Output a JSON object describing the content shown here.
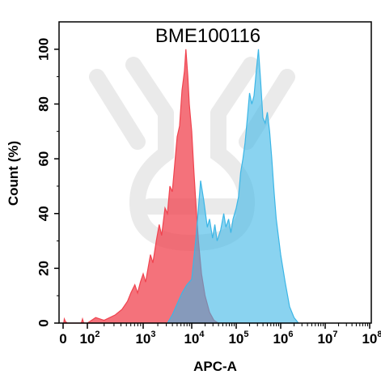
{
  "chart_data": {
    "type": "area",
    "title": "BME100116",
    "xlabel": "APC-A",
    "ylabel": "Count  (%)",
    "x_scale": "biexponential",
    "ylim": [
      0,
      110
    ],
    "xlim": [
      -0.2,
      8
    ],
    "y_ticks": [
      "0",
      "20",
      "40",
      "60",
      "80",
      "100"
    ],
    "x_ticks": [
      {
        "base": "0",
        "exp": ""
      },
      {
        "base": "10",
        "exp": "2"
      },
      {
        "base": "10",
        "exp": "3"
      },
      {
        "base": "10",
        "exp": "4"
      },
      {
        "base": "10",
        "exp": "5"
      },
      {
        "base": "10",
        "exp": "6"
      },
      {
        "base": "10",
        "exp": "7"
      },
      {
        "base": "10",
        "exp": "8"
      }
    ],
    "grid": false,
    "series": [
      {
        "color": "#f0434f",
        "fill_opacity": 0.75,
        "points": [
          [
            0.05,
            0
          ],
          [
            0.1,
            1.5
          ],
          [
            0.2,
            0.5
          ],
          [
            0.35,
            0
          ],
          [
            1.5,
            0
          ],
          [
            1.6,
            1.5
          ],
          [
            1.7,
            0
          ],
          [
            2.0,
            0
          ],
          [
            2.15,
            2
          ],
          [
            2.3,
            1
          ],
          [
            2.5,
            3
          ],
          [
            2.62,
            5
          ],
          [
            2.72,
            8
          ],
          [
            2.78,
            11
          ],
          [
            2.85,
            14
          ],
          [
            2.9,
            11
          ],
          [
            2.95,
            15
          ],
          [
            3.0,
            18
          ],
          [
            3.05,
            15
          ],
          [
            3.1,
            20
          ],
          [
            3.15,
            25
          ],
          [
            3.2,
            22
          ],
          [
            3.27,
            30
          ],
          [
            3.33,
            36
          ],
          [
            3.38,
            32
          ],
          [
            3.45,
            42
          ],
          [
            3.5,
            40
          ],
          [
            3.55,
            50
          ],
          [
            3.6,
            48
          ],
          [
            3.65,
            58
          ],
          [
            3.7,
            68
          ],
          [
            3.75,
            72
          ],
          [
            3.8,
            85
          ],
          [
            3.85,
            92
          ],
          [
            3.88,
            100
          ],
          [
            3.92,
            90
          ],
          [
            3.95,
            80
          ],
          [
            4.0,
            70
          ],
          [
            4.05,
            55
          ],
          [
            4.1,
            42
          ],
          [
            4.15,
            30
          ],
          [
            4.22,
            18
          ],
          [
            4.3,
            10
          ],
          [
            4.4,
            4
          ],
          [
            4.5,
            1
          ],
          [
            4.6,
            0
          ]
        ]
      },
      {
        "color": "#3cb6e6",
        "fill_opacity": 0.6,
        "points": [
          [
            3.5,
            0
          ],
          [
            3.6,
            3
          ],
          [
            3.7,
            7
          ],
          [
            3.8,
            11
          ],
          [
            3.9,
            14
          ],
          [
            4.0,
            16
          ],
          [
            4.05,
            24
          ],
          [
            4.1,
            32
          ],
          [
            4.15,
            42
          ],
          [
            4.2,
            52
          ],
          [
            4.27,
            45
          ],
          [
            4.35,
            35
          ],
          [
            4.4,
            38
          ],
          [
            4.47,
            31
          ],
          [
            4.52,
            36
          ],
          [
            4.57,
            30
          ],
          [
            4.65,
            34
          ],
          [
            4.72,
            40
          ],
          [
            4.77,
            35
          ],
          [
            4.83,
            38
          ],
          [
            4.88,
            33
          ],
          [
            4.93,
            38
          ],
          [
            5.0,
            42
          ],
          [
            5.05,
            46
          ],
          [
            5.1,
            55
          ],
          [
            5.15,
            60
          ],
          [
            5.2,
            66
          ],
          [
            5.25,
            75
          ],
          [
            5.3,
            84
          ],
          [
            5.35,
            80
          ],
          [
            5.4,
            83
          ],
          [
            5.45,
            92
          ],
          [
            5.5,
            100
          ],
          [
            5.55,
            88
          ],
          [
            5.6,
            75
          ],
          [
            5.65,
            73
          ],
          [
            5.7,
            77
          ],
          [
            5.75,
            70
          ],
          [
            5.8,
            60
          ],
          [
            5.85,
            48
          ],
          [
            5.9,
            38
          ],
          [
            6.0,
            25
          ],
          [
            6.1,
            15
          ],
          [
            6.2,
            6
          ],
          [
            6.3,
            2
          ],
          [
            6.4,
            0
          ]
        ]
      }
    ]
  }
}
